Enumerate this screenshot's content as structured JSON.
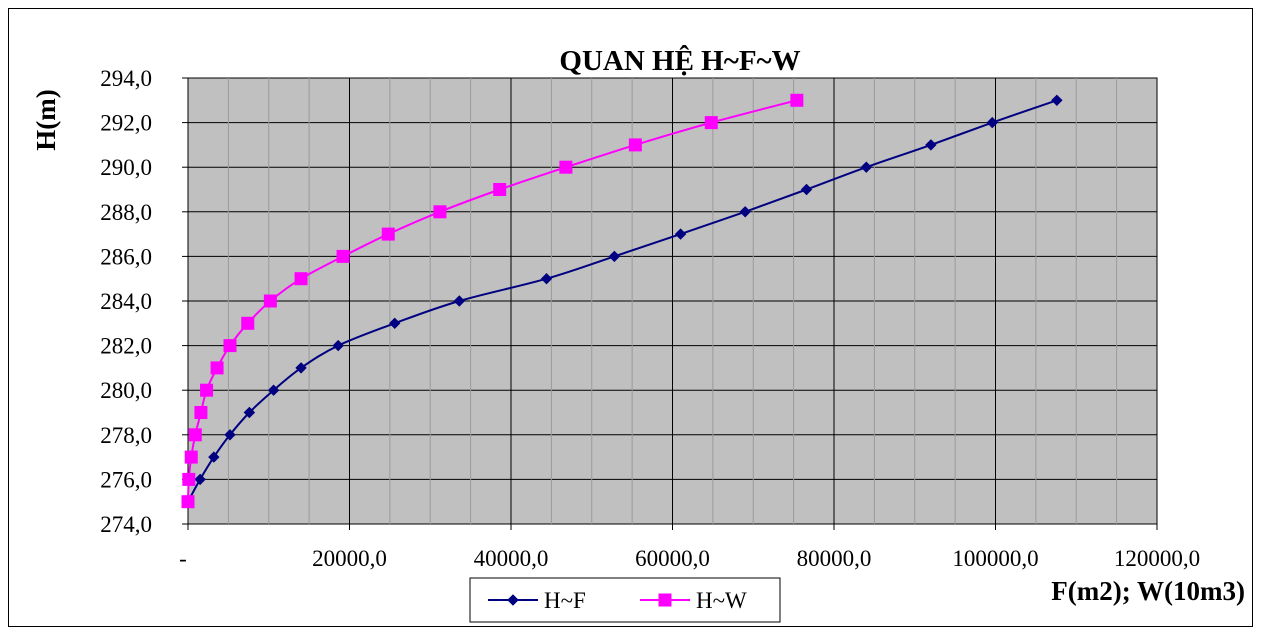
{
  "chart_data": {
    "type": "line",
    "title": "QUAN HỆ H~F~W",
    "ylabel": "H(m)",
    "xlabel": "F(m2); W(10m3)",
    "ylim": [
      274,
      294
    ],
    "xlim": [
      0,
      120000
    ],
    "y_ticks": [
      "274,0",
      "276,0",
      "278,0",
      "280,0",
      "282,0",
      "284,0",
      "286,0",
      "288,0",
      "290,0",
      "292,0",
      "294,0"
    ],
    "x_ticks": [
      "-",
      "20000,0",
      "40000,0",
      "60000,0",
      "80000,0",
      "100000,0",
      "120000,0"
    ],
    "grid": true,
    "legend_position": "bottom",
    "series": [
      {
        "name": "H~F",
        "color": "#000080",
        "marker": "diamond",
        "x": [
          0,
          1500,
          3200,
          5200,
          7600,
          10600,
          14000,
          18600,
          25600,
          33600,
          44400,
          52800,
          61000,
          69000,
          76600,
          84000,
          92000,
          99600,
          107600
        ],
        "y": [
          275,
          276,
          277,
          278,
          279,
          280,
          281,
          282,
          283,
          284,
          285,
          286,
          287,
          288,
          289,
          290,
          291,
          292,
          293
        ]
      },
      {
        "name": "H~W",
        "color": "#ff00ff",
        "marker": "square",
        "x": [
          0,
          100,
          400,
          900,
          1600,
          2300,
          3600,
          5200,
          7400,
          10200,
          14000,
          19200,
          24800,
          31200,
          38600,
          46800,
          55400,
          64800,
          75400
        ],
        "y": [
          275,
          276,
          277,
          278,
          279,
          280,
          281,
          282,
          283,
          284,
          285,
          286,
          287,
          288,
          289,
          290,
          291,
          292,
          293
        ]
      }
    ]
  }
}
